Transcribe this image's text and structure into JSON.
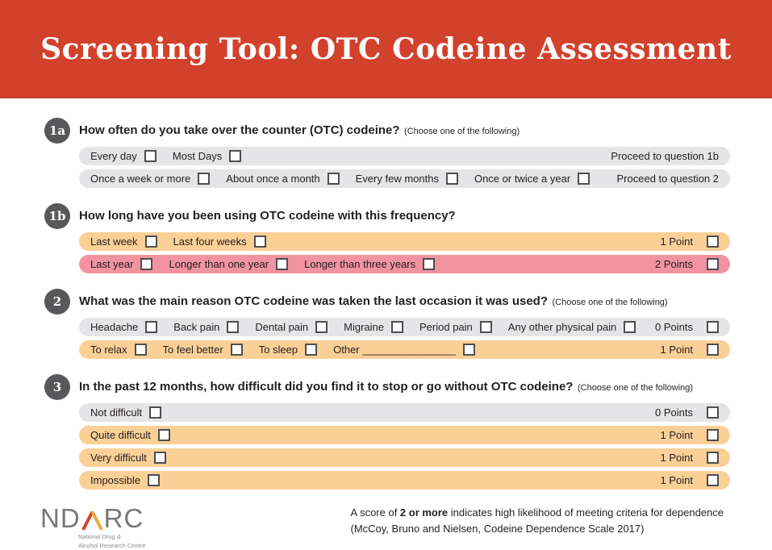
{
  "header": {
    "title": "Screening Tool: OTC Codeine Assessment"
  },
  "colors": {
    "header_red": "#d2412b",
    "badge_gray": "#58585a",
    "row_gray": "#e5e4e6",
    "row_orange": "#fbd096",
    "row_pink": "#f193a0",
    "checkbox_border": "#4d4e50",
    "logo_gray": "#77787b",
    "triangle_red": "#d2412b",
    "triangle_gold": "#eda93c"
  },
  "questions": [
    {
      "id": "1a",
      "badge": "1a",
      "text": "How often do you take over the counter (OTC) codeine?",
      "note": "(Choose one of the following)",
      "rows": [
        {
          "variant": "gray",
          "options": [
            "Every day",
            "Most Days"
          ],
          "right_label": "Proceed to question 1b",
          "right_checkbox": false
        },
        {
          "variant": "gray",
          "options": [
            "Once a week or more",
            "About once a month",
            "Every few months",
            "Once or twice a year"
          ],
          "right_label": "Proceed to question 2",
          "right_checkbox": false
        }
      ]
    },
    {
      "id": "1b",
      "badge": "1b",
      "text": "How long have you been using OTC codeine with this frequency?",
      "note": "",
      "rows": [
        {
          "variant": "orange",
          "options": [
            "Last week",
            "Last four weeks"
          ],
          "right_label": "1 Point",
          "right_checkbox": true
        },
        {
          "variant": "pink",
          "options": [
            "Last year",
            "Longer than one year",
            "Longer than three years"
          ],
          "right_label": "2 Points",
          "right_checkbox": true
        }
      ]
    },
    {
      "id": "2",
      "badge": "2",
      "text": "What was the main reason OTC codeine was taken the last occasion it was used?",
      "note": "(Choose one of the following)",
      "rows": [
        {
          "variant": "gray",
          "options": [
            "Headache",
            "Back pain",
            "Dental pain",
            "Migraine",
            "Period pain",
            "Any other physical pain"
          ],
          "right_label": "0 Points",
          "right_checkbox": true
        },
        {
          "variant": "orange",
          "options": [
            "To relax",
            "To feel better",
            "To sleep",
            "Other ________________"
          ],
          "right_label": "1 Point",
          "right_checkbox": true
        }
      ]
    },
    {
      "id": "3",
      "badge": "3",
      "text": "In the past 12 months, how difficult did you find it to stop or go without OTC codeine?",
      "note": "(Choose one of the following)",
      "rows": [
        {
          "variant": "gray",
          "options": [
            "Not difficult"
          ],
          "right_label": "0 Points",
          "right_checkbox": true
        },
        {
          "variant": "orange",
          "options": [
            "Quite difficult"
          ],
          "right_label": "1 Point",
          "right_checkbox": true
        },
        {
          "variant": "orange",
          "options": [
            "Very difficult"
          ],
          "right_label": "1 Point",
          "right_checkbox": true
        },
        {
          "variant": "orange",
          "options": [
            "Impossible"
          ],
          "right_label": "1 Point",
          "right_checkbox": true
        }
      ]
    }
  ],
  "footer": {
    "logo": {
      "left": "ND",
      "right": "RC",
      "subtitle1": "National Drug &",
      "subtitle2": "Alcohol Research Centre"
    },
    "note": {
      "pre": "A score of ",
      "bold": "2 or more",
      "post": " indicates high likelihood of meeting criteria for dependence",
      "line2": "(McCoy, Bruno and Nielsen, Codeine Dependence Scale 2017)"
    }
  }
}
